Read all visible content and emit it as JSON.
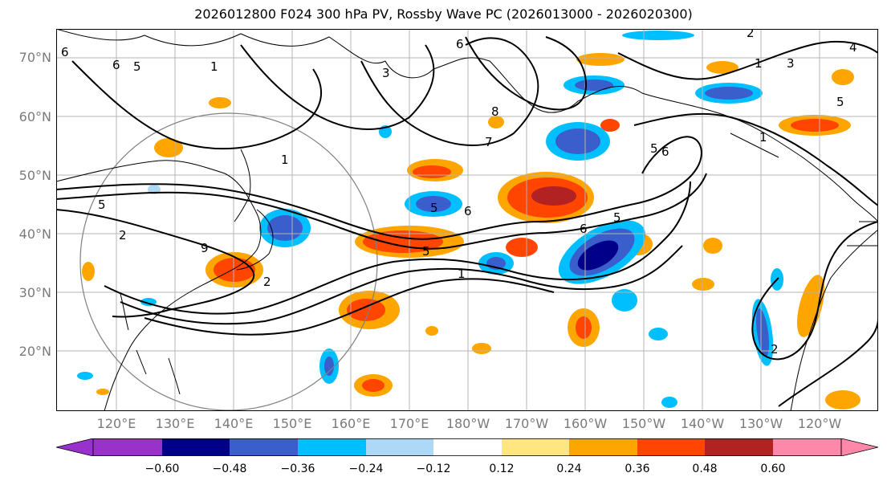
{
  "title": "2026012800 F024 300 hPa PV, Rossby Wave PC (2026013000 - 2026020300)",
  "lat_labels": [
    "70°N",
    "60°N",
    "50°N",
    "40°N",
    "30°N",
    "20°N"
  ],
  "lon_labels": [
    "120°E",
    "130°E",
    "140°E",
    "150°E",
    "160°E",
    "170°E",
    "180°W",
    "170°W",
    "160°W",
    "150°W",
    "140°W",
    "130°W",
    "120°W"
  ],
  "colorbar": {
    "ticks": [
      "−0.60",
      "−0.48",
      "−0.36",
      "−0.24",
      "−0.12",
      "0.12",
      "0.24",
      "0.36",
      "0.48",
      "0.60"
    ],
    "colors": [
      "#9932cc",
      "#00008b",
      "#3a5fcd",
      "#00bfff",
      "#add8f6",
      "#ffffff",
      "#ffe680",
      "#ffa500",
      "#ff4500",
      "#b22222",
      "#ff88aa"
    ]
  },
  "pv_contour_labels": [
    "6",
    "6",
    "5",
    "1",
    "6",
    "3",
    "8",
    "7",
    "1",
    "5",
    "6",
    "1",
    "5",
    "6",
    "5",
    "2",
    "9",
    "2",
    "5",
    "1",
    "5",
    "6",
    "2",
    "1",
    "2",
    "4",
    "3",
    "5"
  ],
  "colors": {
    "grid": "#b4b4b4",
    "coast": "#000000",
    "contour": "#000000",
    "circle": "#808080"
  }
}
